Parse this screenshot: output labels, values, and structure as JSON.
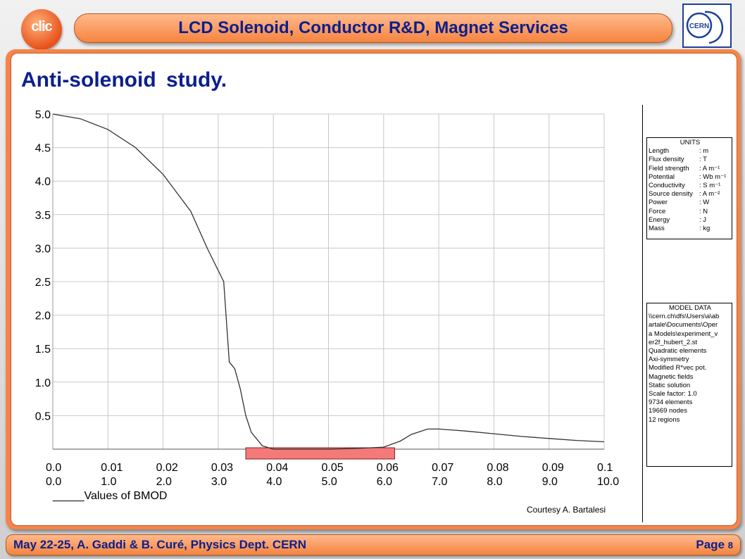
{
  "header": {
    "title": "LCD Solenoid, Conductor R&D, Magnet Services",
    "left_logo_text": "clic",
    "right_logo_text": "CERN"
  },
  "slide": {
    "title": "Anti-solenoid study."
  },
  "chart_data": {
    "type": "line",
    "x": [
      0.0,
      0.005,
      0.01,
      0.015,
      0.02,
      0.025,
      0.028,
      0.031,
      0.032,
      0.033,
      0.034,
      0.035,
      0.036,
      0.038,
      0.04,
      0.045,
      0.05,
      0.055,
      0.06,
      0.063,
      0.065,
      0.068,
      0.07,
      0.075,
      0.08,
      0.085,
      0.09,
      0.095,
      0.1
    ],
    "values": [
      5.0,
      4.93,
      4.77,
      4.5,
      4.1,
      3.55,
      3.0,
      2.5,
      1.3,
      1.2,
      0.9,
      0.5,
      0.25,
      0.05,
      0.0,
      0.0,
      0.0,
      0.01,
      0.03,
      0.12,
      0.22,
      0.3,
      0.3,
      0.27,
      0.23,
      0.19,
      0.16,
      0.13,
      0.11
    ],
    "x_ticks": [
      "0.0",
      "0.01",
      "0.02",
      "0.03",
      "0.04",
      "0.05",
      "0.06",
      "0.07",
      "0.08",
      "0.09",
      "0.1"
    ],
    "x_ticks_secondary": [
      "0.0",
      "1.0",
      "2.0",
      "3.0",
      "4.0",
      "5.0",
      "6.0",
      "7.0",
      "8.0",
      "9.0",
      "10.0"
    ],
    "y_ticks": [
      "5.0",
      "4.5",
      "4.0",
      "3.5",
      "3.0",
      "2.5",
      "2.0",
      "1.5",
      "1.0",
      "0.5"
    ],
    "xlim": [
      0.0,
      0.1
    ],
    "ylim": [
      0.0,
      5.0
    ],
    "grid": true,
    "legend": "_____Values of BMOD",
    "highlight_range": [
      0.035,
      0.062
    ],
    "highlight_color": "#f47a7a",
    "line_color": "#333333"
  },
  "units_box": {
    "title": "UNITS",
    "rows": [
      {
        "k": "Length",
        "v": ": m"
      },
      {
        "k": "Flux density",
        "v": ": T"
      },
      {
        "k": "Field strength",
        "v": ": A m⁻¹"
      },
      {
        "k": "Potential",
        "v": ": Wb m⁻¹"
      },
      {
        "k": "Conductivity",
        "v": ": S m⁻¹"
      },
      {
        "k": "Source density",
        "v": ": A m⁻²"
      },
      {
        "k": "Power",
        "v": ": W"
      },
      {
        "k": "Force",
        "v": ": N"
      },
      {
        "k": "Energy",
        "v": ": J"
      },
      {
        "k": "Mass",
        "v": ": kg"
      }
    ]
  },
  "model_box": {
    "title": "MODEL DATA",
    "lines": [
      "\\\\cern.ch\\dfs\\Users\\a\\ab",
      "artale\\Documents\\Oper",
      "a Models\\experiment_v",
      "er2f_hubert_2.st",
      "Quadratic elements",
      "Axi-symmetry",
      "Modified R*vec pot.",
      "Magnetic fields",
      "Static solution",
      "Scale factor: 1.0",
      "9734 elements",
      "19669 nodes",
      "12 regions"
    ]
  },
  "courtesy": "Courtesy A. Bartalesi",
  "footer": {
    "left": "May 22-25, A. Gaddi & B. Curé, Physics Dept. CERN",
    "page_label": "Page",
    "page_number": "8"
  },
  "colors": {
    "accent_orange": "#f6844a",
    "title_blue": "#0a1f8f"
  }
}
